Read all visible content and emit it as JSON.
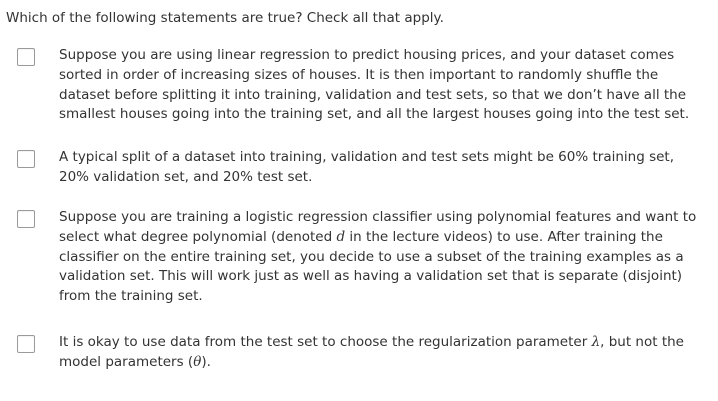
{
  "question": "Which of the following statements are true? Check all that apply.",
  "options": [
    {
      "text": "Suppose you are using linear regression to predict housing prices, and your dataset comes sorted in order of increasing sizes of houses. It is then important to randomly shuffle the dataset before splitting it into training, validation and test sets, so that we don’t have all the smallest houses going into the training set, and all the largest houses going into the test set.",
      "checked": false
    },
    {
      "text": "A typical split of a dataset into training, validation and test sets might be 60% training set, 20% validation set, and 20% test set.",
      "checked": false
    },
    {
      "text_before": "Suppose you are training a logistic regression classifier using polynomial features and want to select what degree polynomial (denoted ",
      "math": "d",
      "text_after": " in the lecture videos) to use. After training the classifier on the entire training set, you decide to use a subset of the training examples as a validation set. This will work just as well as having a validation set that is separate (disjoint) from the training set.",
      "checked": false
    },
    {
      "text_before": "It is okay to use data from the test set to choose the regularization parameter ",
      "math": "λ",
      "text_middle": ", but not the model parameters (",
      "math2": "θ",
      "text_after": ").",
      "checked": false
    }
  ]
}
